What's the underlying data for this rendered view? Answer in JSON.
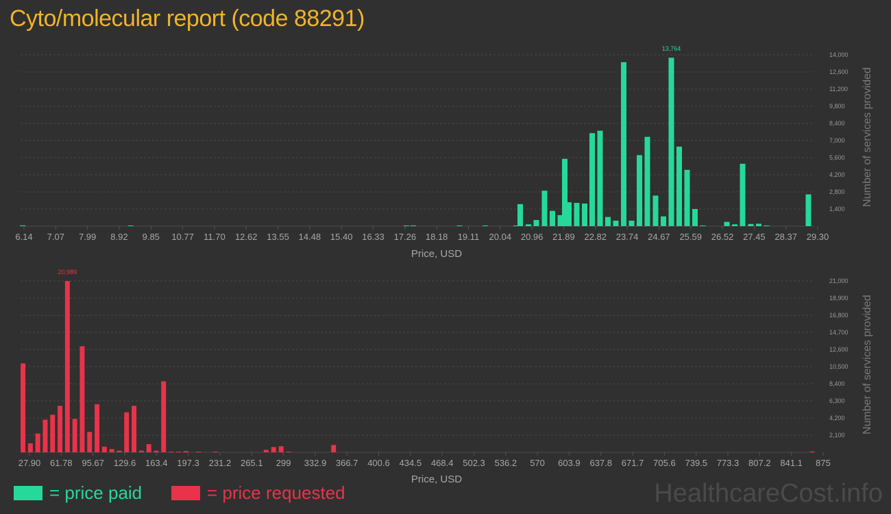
{
  "title": "Cyto/molecular report (code 88291)",
  "legend": {
    "paid_label": "= price paid",
    "requested_label": "= price requested",
    "paid_color": "#26d99a",
    "requested_color": "#e8334a"
  },
  "watermark": "HealthcareCost.info",
  "chart_data": [
    {
      "type": "bar",
      "id": "paid",
      "title": "",
      "xlabel": "Price, USD",
      "ylabel": "Number of services provided",
      "color": "#26d99a",
      "grid": true,
      "xlim": [
        6.14,
        29.3
      ],
      "ylim": [
        0,
        14000
      ],
      "yticks": [
        1400,
        2800,
        4200,
        5600,
        7000,
        8400,
        9800,
        11200,
        12600,
        14000
      ],
      "ytick_labels": [
        "1,400",
        "2,800",
        "4,200",
        "5,600",
        "7,000",
        "8,400",
        "9,800",
        "11,200",
        "12,600",
        "14,000"
      ],
      "xtick_labels": [
        "6.14",
        "7.07",
        "7.99",
        "8.92",
        "9.85",
        "10.77",
        "11.70",
        "12.62",
        "13.55",
        "14.48",
        "15.40",
        "16.33",
        "17.26",
        "18.18",
        "19.11",
        "20.04",
        "20.96",
        "21.89",
        "22.82",
        "23.74",
        "24.67",
        "25.59",
        "26.52",
        "27.45",
        "28.37",
        "29.30"
      ],
      "peak_label": "13,764",
      "x": [
        6.2,
        9.35,
        17.4,
        17.6,
        18.95,
        19.7,
        20.6,
        20.72,
        20.96,
        21.19,
        21.43,
        21.66,
        21.89,
        22.02,
        22.14,
        22.37,
        22.6,
        22.82,
        23.05,
        23.28,
        23.51,
        23.74,
        23.97,
        24.2,
        24.43,
        24.67,
        24.9,
        25.13,
        25.36,
        25.59,
        25.82,
        26.05,
        26.75,
        26.98,
        27.21,
        27.45,
        27.68,
        27.91,
        29.13
      ],
      "values": [
        60,
        40,
        50,
        60,
        30,
        50,
        30,
        1800,
        150,
        500,
        2900,
        1250,
        900,
        5500,
        1950,
        1900,
        1850,
        7600,
        7800,
        750,
        450,
        13400,
        450,
        5800,
        7300,
        2500,
        800,
        13764,
        6500,
        4600,
        1400,
        20,
        350,
        150,
        5100,
        180,
        200,
        10,
        2600
      ]
    },
    {
      "type": "bar",
      "id": "requested",
      "title": "",
      "xlabel": "Price, USD",
      "ylabel": "Number of services provided",
      "color": "#e8334a",
      "grid": true,
      "xlim": [
        27.9,
        875
      ],
      "ylim": [
        0,
        21000
      ],
      "yticks": [
        2100,
        4200,
        6300,
        8400,
        10500,
        12600,
        14700,
        16800,
        18900,
        21000
      ],
      "ytick_labels": [
        "2,100",
        "4,200",
        "6,300",
        "8,400",
        "10,500",
        "12,600",
        "14,700",
        "16,800",
        "18,900",
        "21,000"
      ],
      "xtick_labels": [
        "27.90",
        "61.78",
        "95.67",
        "129.6",
        "163.4",
        "197.3",
        "231.2",
        "265.1",
        "299",
        "332.9",
        "366.7",
        "400.6",
        "434.5",
        "468.4",
        "502.3",
        "536.2",
        "570",
        "603.9",
        "637.8",
        "671.7",
        "705.6",
        "739.5",
        "773.3",
        "807.2",
        "841.1",
        "875"
      ],
      "xtick_values": [
        27.9,
        61.78,
        95.67,
        129.6,
        163.4,
        197.3,
        231.2,
        265.1,
        299,
        332.9,
        366.7,
        400.6,
        434.5,
        468.4,
        502.3,
        536.2,
        570,
        603.9,
        637.8,
        671.7,
        705.6,
        739.5,
        773.3,
        807.2,
        841.1,
        875
      ],
      "peak_label": "20,989",
      "x": [
        30.5,
        38.4,
        46.3,
        54.2,
        62.1,
        70,
        77.9,
        85.8,
        93.7,
        101.6,
        109.5,
        117.4,
        125.3,
        133.2,
        141.1,
        149,
        156.9,
        164.8,
        172.7,
        180.6,
        188.5,
        196.4,
        204.3,
        218,
        236,
        290,
        298,
        306,
        314,
        362,
        873
      ],
      "values": [
        10900,
        1100,
        2300,
        4000,
        4600,
        5700,
        20989,
        4100,
        13000,
        2500,
        5900,
        700,
        400,
        200,
        4900,
        5700,
        200,
        1000,
        200,
        8700,
        60,
        80,
        150,
        40,
        40,
        300,
        650,
        750,
        40,
        900,
        100
      ]
    }
  ]
}
